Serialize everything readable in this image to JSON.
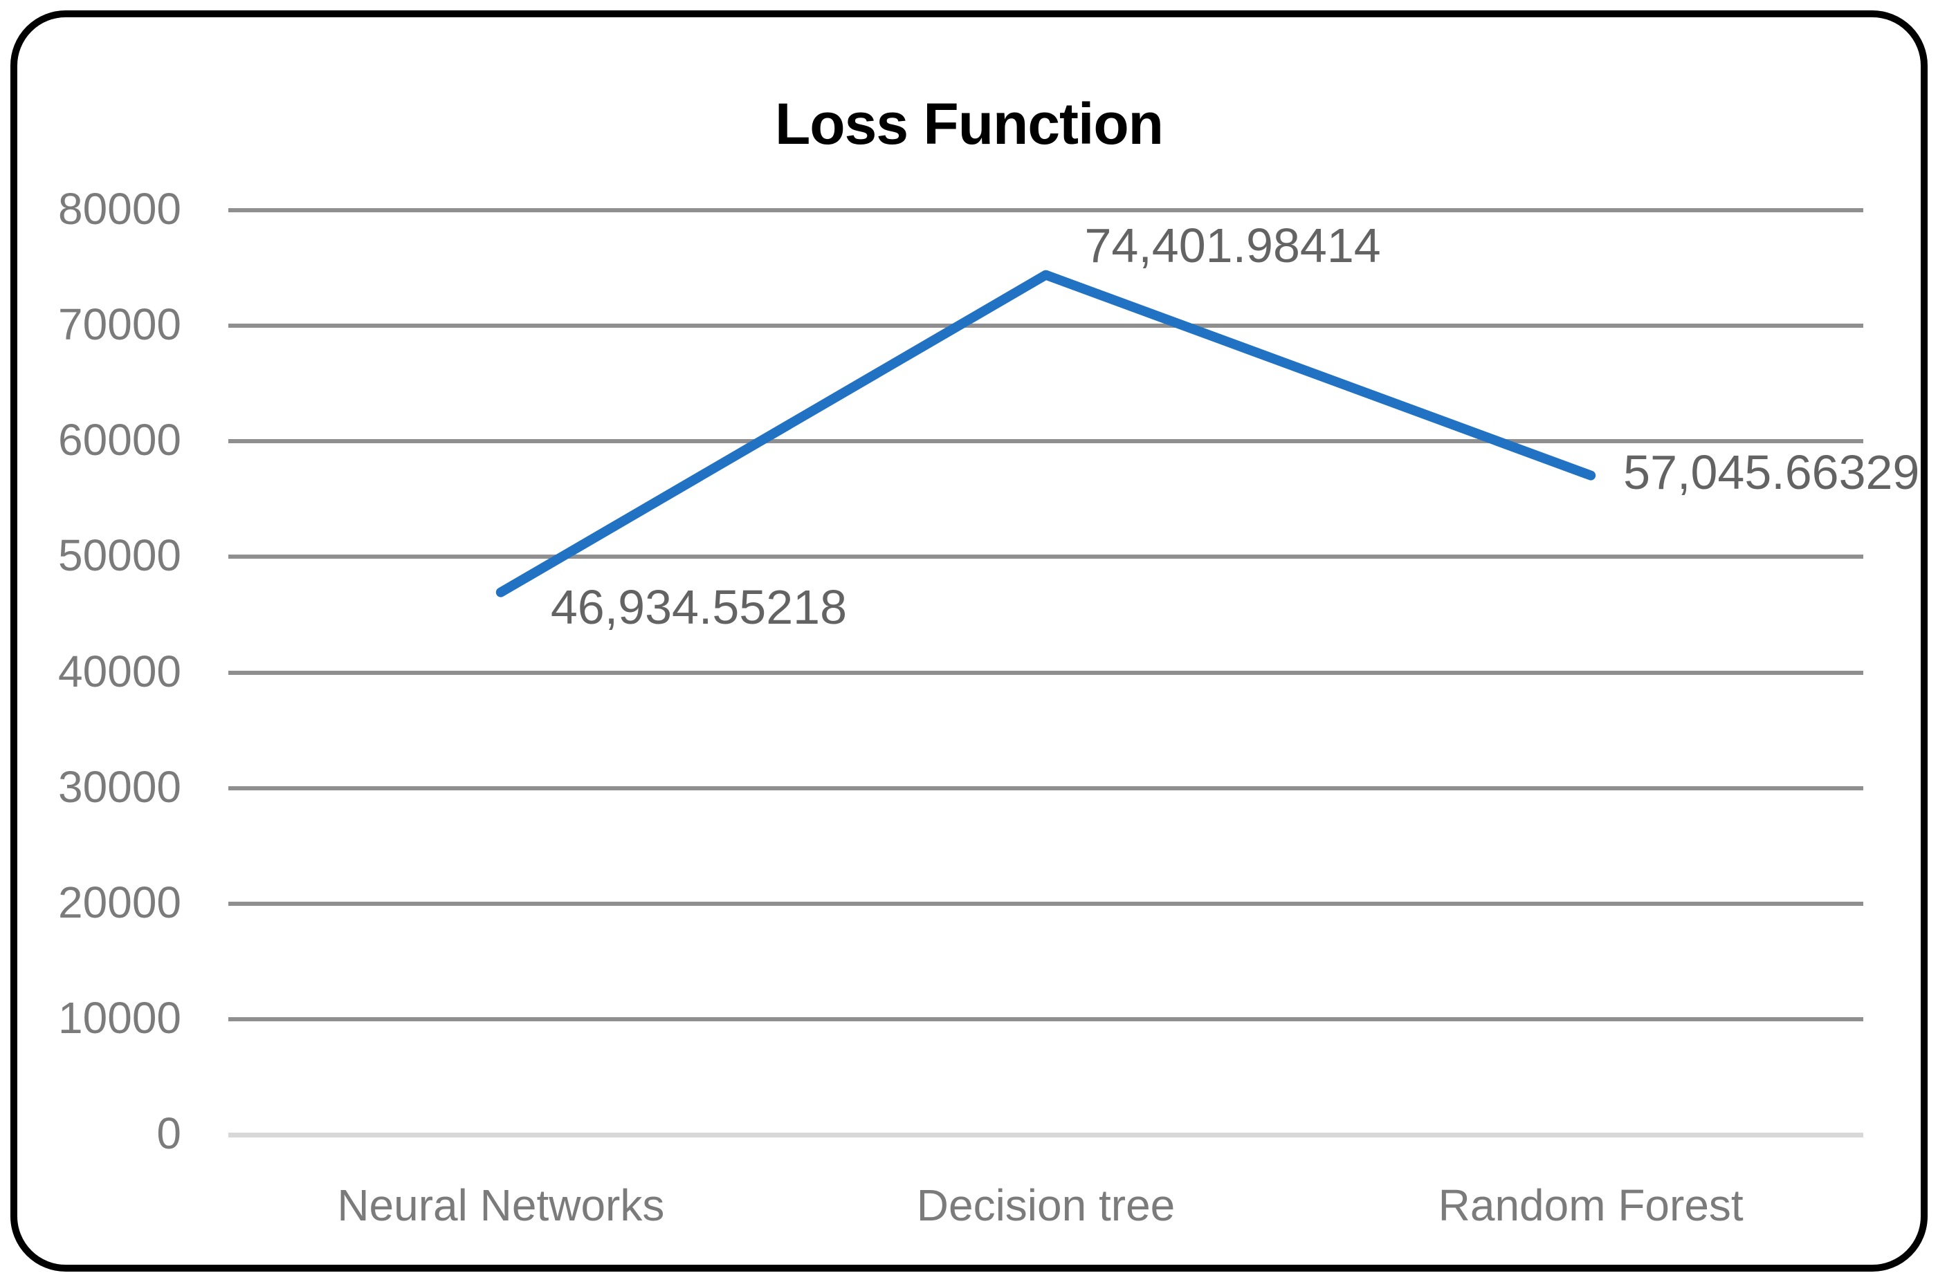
{
  "chart_data": {
    "type": "line",
    "title": "Loss Function",
    "categories": [
      "Neural Networks",
      "Decision tree",
      "Random Forest"
    ],
    "series": [
      {
        "name": "Loss Function",
        "values": [
          46934.55218,
          74401.98414,
          57045.66329
        ],
        "data_labels": [
          "46,934.55218",
          "74,401.98414",
          "57,045.66329"
        ]
      }
    ],
    "xlabel": "",
    "ylabel": "",
    "ylim": [
      0,
      80000
    ],
    "y_ticks": [
      0,
      10000,
      20000,
      30000,
      40000,
      50000,
      60000,
      70000,
      80000
    ],
    "y_tick_labels": [
      "0",
      "10000",
      "20000",
      "30000",
      "40000",
      "50000",
      "60000",
      "70000",
      "80000"
    ],
    "grid": true,
    "legend": "none",
    "colors": {
      "line": "#2272C3",
      "gridline": "#8F8F8F",
      "zero_gridline": "#D8D8D8",
      "axis_text": "#7B7B7B",
      "data_label_text": "#636363",
      "title_text": "#000000",
      "frame_border": "#000000",
      "background": "#FFFFFF"
    }
  }
}
